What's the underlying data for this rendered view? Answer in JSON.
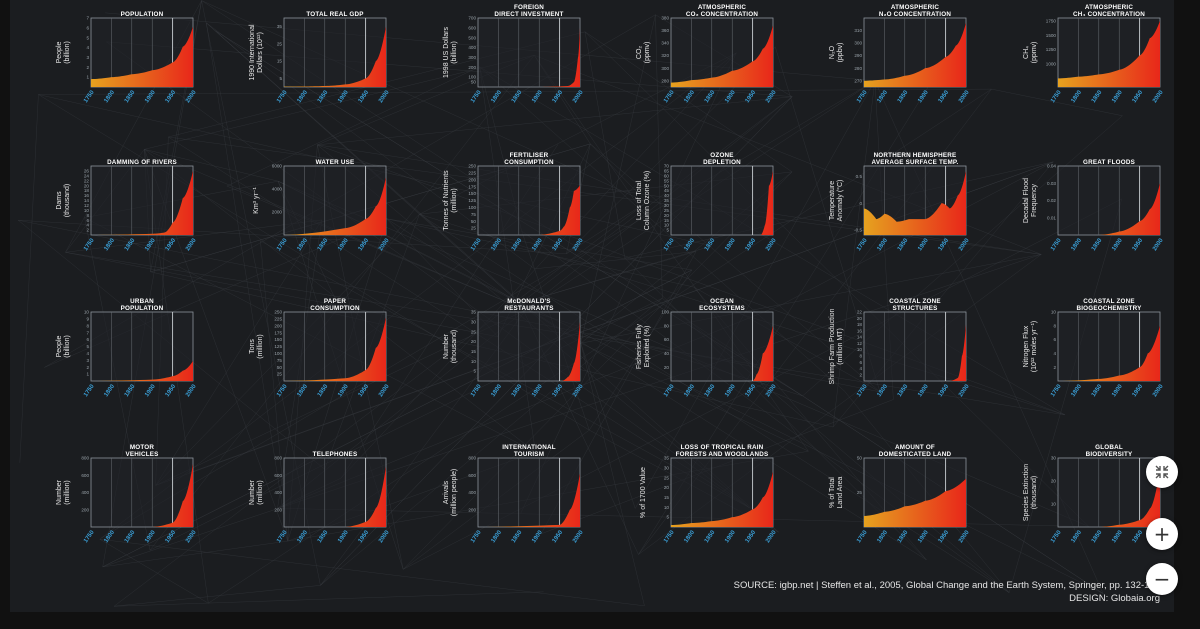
{
  "footer": {
    "source": "SOURCE: igbp.net | Steffen et al., 2005, Global Change and the Earth System, Springer, pp. 132-133",
    "design": "DESIGN: Globaia.org"
  },
  "controls": {
    "exit_fullscreen_icon": "compress-arrows-icon",
    "zoom_in_label": "+",
    "zoom_out_label": "−"
  },
  "colors": {
    "background": "#1b1d20",
    "fill_low": "#e6a21f",
    "fill_high": "#e8271a",
    "tick_color": "#3aa0d8"
  },
  "chart_data": [
    {
      "type": "area",
      "title": [
        "POPULATION"
      ],
      "ylabel": [
        "People",
        "(billion)"
      ],
      "yticks": [
        "1",
        "2",
        "3",
        "4",
        "5",
        "6",
        "7"
      ],
      "ylim": [
        0,
        7
      ],
      "x": [
        1750,
        1800,
        1850,
        1900,
        1950,
        1975,
        2000
      ],
      "values": [
        0.8,
        1.0,
        1.3,
        1.7,
        2.5,
        4.1,
        6.1
      ]
    },
    {
      "type": "area",
      "title": [
        "TOTAL REAL GDP"
      ],
      "ylabel": [
        "1990 International",
        "Dollars (10¹²)"
      ],
      "yticks": [
        "5",
        "15",
        "25",
        "35"
      ],
      "ylim": [
        0,
        40
      ],
      "x": [
        1750,
        1800,
        1850,
        1900,
        1950,
        1975,
        2000
      ],
      "values": [
        0.2,
        0.3,
        0.6,
        1.5,
        5,
        15,
        35
      ]
    },
    {
      "type": "area",
      "title": [
        "FOREIGN",
        "DIRECT INVESTMENT"
      ],
      "ylabel": [
        "1998 US Dollars",
        "(billion)"
      ],
      "yticks": [
        "50",
        "100",
        "200",
        "300",
        "400",
        "500",
        "600",
        "700"
      ],
      "ylim": [
        0,
        700
      ],
      "x": [
        1750,
        1900,
        1970,
        1985,
        1995,
        2000
      ],
      "values": [
        0,
        0,
        10,
        50,
        300,
        600
      ]
    },
    {
      "type": "area",
      "title": [
        "ATMOSPHERIC",
        "CO₂ CONCENTRATION"
      ],
      "ylabel": [
        "CO₂",
        "(ppmv)"
      ],
      "yticks": [
        "280",
        "300",
        "320",
        "340",
        "360",
        "380"
      ],
      "ylim": [
        270,
        380
      ],
      "x": [
        1750,
        1800,
        1850,
        1900,
        1950,
        1975,
        2000
      ],
      "values": [
        277,
        281,
        285,
        296,
        311,
        331,
        368
      ]
    },
    {
      "type": "area",
      "title": [
        "ATMOSPHERIC",
        "N₂O CONCENTRATION"
      ],
      "ylabel": [
        "N₂O",
        "(ppbv)"
      ],
      "yticks": [
        "270",
        "280",
        "290",
        "300",
        "310"
      ],
      "ylim": [
        265,
        320
      ],
      "x": [
        1750,
        1800,
        1850,
        1900,
        1950,
        1975,
        2000
      ],
      "values": [
        270,
        271,
        274,
        280,
        289,
        298,
        316
      ]
    },
    {
      "type": "area",
      "title": [
        "ATMOSPHERIC",
        "CH₄ CONCENTRATION"
      ],
      "ylabel": [
        "CH₄",
        "(ppmv)"
      ],
      "yticks": [
        "1000",
        "1250",
        "1500",
        "1750"
      ],
      "ylim": [
        600,
        1800
      ],
      "x": [
        1750,
        1800,
        1850,
        1900,
        1950,
        1975,
        2000
      ],
      "values": [
        750,
        780,
        820,
        900,
        1150,
        1450,
        1750
      ]
    },
    {
      "type": "area",
      "title": [
        "DAMMING OF RIVERS"
      ],
      "ylabel": [
        "Dams",
        "(thousand)"
      ],
      "yticks": [
        "2",
        "4",
        "6",
        "8",
        "10",
        "12",
        "14",
        "16",
        "18",
        "20",
        "22",
        "24",
        "26"
      ],
      "ylim": [
        0,
        28
      ],
      "x": [
        1750,
        1900,
        1930,
        1950,
        1975,
        2000
      ],
      "values": [
        0,
        0.5,
        1,
        5,
        15,
        26
      ]
    },
    {
      "type": "area",
      "title": [
        "WATER USE"
      ],
      "ylabel": [
        "Km³ yr⁻¹"
      ],
      "yticks": [
        "2000",
        "4000",
        "6000"
      ],
      "ylim": [
        0,
        6000
      ],
      "x": [
        1750,
        1900,
        1950,
        1975,
        2000
      ],
      "values": [
        0,
        600,
        1400,
        2500,
        5000
      ]
    },
    {
      "type": "area",
      "title": [
        "FERTILISER",
        "CONSUMPTION"
      ],
      "ylabel": [
        "Tonnes of Nutrients",
        "(million)"
      ],
      "yticks": [
        "25",
        "50",
        "75",
        "100",
        "125",
        "150",
        "175",
        "200",
        "225",
        "250"
      ],
      "ylim": [
        0,
        250
      ],
      "x": [
        1750,
        1900,
        1950,
        1960,
        1975,
        1985,
        2000
      ],
      "values": [
        0,
        0,
        15,
        30,
        100,
        160,
        180
      ]
    },
    {
      "type": "area",
      "title": [
        "OZONE",
        "DEPLETION"
      ],
      "ylabel": [
        "Loss of Total",
        "Column Ozone (%)"
      ],
      "yticks": [
        "5",
        "10",
        "15",
        "20",
        "25",
        "30",
        "35",
        "40",
        "45",
        "50",
        "55",
        "60",
        "65",
        "70"
      ],
      "ylim": [
        0,
        70
      ],
      "x": [
        1750,
        1970,
        1980,
        1990,
        2000
      ],
      "values": [
        0,
        0,
        10,
        50,
        65
      ]
    },
    {
      "type": "area",
      "title": [
        "NORTHERN HEMISPHERE",
        "AVERAGE SURFACE TEMP."
      ],
      "ylabel": [
        "Temperature",
        "Anomaly (°C)"
      ],
      "yticks": [
        "0.5",
        "0",
        "-0.5"
      ],
      "ylim": [
        -0.6,
        0.7
      ],
      "x": [
        1750,
        1780,
        1800,
        1830,
        1860,
        1900,
        1940,
        1960,
        1980,
        2000
      ],
      "values": [
        -0.1,
        -0.3,
        -0.2,
        -0.35,
        -0.3,
        -0.3,
        0.0,
        -0.1,
        0.15,
        0.6
      ]
    },
    {
      "type": "area",
      "title": [
        "GREAT FLOODS"
      ],
      "ylabel": [
        "Decadal Flood",
        "Frequency"
      ],
      "yticks": [
        "0.01",
        "0.02",
        "0.03",
        "0.04"
      ],
      "ylim": [
        0,
        0.04
      ],
      "x": [
        1750,
        1850,
        1900,
        1950,
        1975,
        2000
      ],
      "values": [
        0,
        0,
        0.002,
        0.008,
        0.015,
        0.03
      ]
    },
    {
      "type": "area",
      "title": [
        "URBAN",
        "POPULATION"
      ],
      "ylabel": [
        "People",
        "(billion)"
      ],
      "yticks": [
        "1",
        "2",
        "3",
        "4",
        "5",
        "6",
        "7",
        "8",
        "9",
        "10"
      ],
      "ylim": [
        0,
        10
      ],
      "x": [
        1750,
        1900,
        1950,
        1975,
        2000
      ],
      "values": [
        0,
        0.2,
        0.7,
        1.5,
        2.9
      ]
    },
    {
      "type": "area",
      "title": [
        "PAPER",
        "CONSUMPTION"
      ],
      "ylabel": [
        "Tons",
        "(million)"
      ],
      "yticks": [
        "25",
        "50",
        "75",
        "100",
        "125",
        "150",
        "175",
        "200",
        "225",
        "250"
      ],
      "ylim": [
        0,
        250
      ],
      "x": [
        1750,
        1900,
        1950,
        1975,
        2000
      ],
      "values": [
        0,
        10,
        40,
        120,
        230
      ]
    },
    {
      "type": "area",
      "title": [
        "McDONALD'S",
        "RESTAURANTS"
      ],
      "ylabel": [
        "Number",
        "(thousand)"
      ],
      "yticks": [
        "5",
        "10",
        "15",
        "20",
        "25",
        "30",
        "35"
      ],
      "ylim": [
        0,
        35
      ],
      "x": [
        1750,
        1955,
        1970,
        1985,
        2000
      ],
      "values": [
        0,
        0,
        2,
        9,
        30
      ]
    },
    {
      "type": "area",
      "title": [
        "OCEAN",
        "ECOSYSTEMS"
      ],
      "ylabel": [
        "Fisheries Fully",
        "Exploited (%)"
      ],
      "yticks": [
        "20",
        "40",
        "60",
        "80",
        "100"
      ],
      "ylim": [
        0,
        100
      ],
      "x": [
        1750,
        1950,
        1960,
        1975,
        2000
      ],
      "values": [
        0,
        0,
        10,
        40,
        80
      ]
    },
    {
      "type": "area",
      "title": [
        "COASTAL ZONE",
        "STRUCTURES"
      ],
      "ylabel": [
        "Shrimp Farm Production",
        "(million MT)"
      ],
      "yticks": [
        "2",
        "4",
        "6",
        "8",
        "10",
        "12",
        "14",
        "16",
        "18",
        "20",
        "22"
      ],
      "ylim": [
        0,
        22
      ],
      "x": [
        1750,
        1960,
        1980,
        1990,
        2000
      ],
      "values": [
        0,
        0,
        1,
        8,
        18
      ]
    },
    {
      "type": "area",
      "title": [
        "COASTAL ZONE",
        "BIOGEOCHEMISTRY"
      ],
      "ylabel": [
        "Nitrogen Flux",
        "(10¹² moles yr⁻¹)"
      ],
      "yticks": [
        "2",
        "4",
        "6",
        "8",
        "10"
      ],
      "ylim": [
        0,
        10
      ],
      "x": [
        1750,
        1850,
        1900,
        1950,
        1970,
        2000
      ],
      "values": [
        0,
        0.3,
        0.8,
        2,
        4,
        8
      ]
    },
    {
      "type": "area",
      "title": [
        "MOTOR",
        "VEHICLES"
      ],
      "ylabel": [
        "Number",
        "(million)"
      ],
      "yticks": [
        "200",
        "400",
        "600",
        "800"
      ],
      "ylim": [
        0,
        800
      ],
      "x": [
        1750,
        1900,
        1950,
        1975,
        2000
      ],
      "values": [
        0,
        0,
        50,
        300,
        730
      ]
    },
    {
      "type": "area",
      "title": [
        "TELEPHONES"
      ],
      "ylabel": [
        "Number",
        "(million)"
      ],
      "yticks": [
        "200",
        "400",
        "600",
        "800"
      ],
      "ylim": [
        0,
        800
      ],
      "x": [
        1750,
        1900,
        1950,
        1975,
        2000
      ],
      "values": [
        0,
        0,
        60,
        220,
        700
      ]
    },
    {
      "type": "area",
      "title": [
        "INTERNATIONAL",
        "TOURISM"
      ],
      "ylabel": [
        "Arrivals",
        "(million people)"
      ],
      "yticks": [
        "200",
        "400",
        "600",
        "800"
      ],
      "ylim": [
        0,
        800
      ],
      "x": [
        1750,
        1950,
        1975,
        2000
      ],
      "values": [
        0,
        25,
        200,
        620
      ]
    },
    {
      "type": "area",
      "title": [
        "LOSS OF TROPICAL RAIN",
        "FORESTS AND WOODLANDS"
      ],
      "ylabel": [
        "% of 1700 Value"
      ],
      "yticks": [
        "5",
        "10",
        "15",
        "20",
        "25",
        "30",
        "35"
      ],
      "ylim": [
        0,
        35
      ],
      "x": [
        1750,
        1800,
        1850,
        1900,
        1950,
        1975,
        2000
      ],
      "values": [
        1,
        2,
        3,
        5,
        9,
        15,
        28
      ]
    },
    {
      "type": "area",
      "title": [
        "AMOUNT OF",
        "DOMESTICATED LAND"
      ],
      "ylabel": [
        "% of Total",
        "Land Area"
      ],
      "yticks": [
        "25",
        "50"
      ],
      "ylim": [
        0,
        50
      ],
      "x": [
        1750,
        1800,
        1850,
        1900,
        1950,
        2000
      ],
      "values": [
        8,
        11,
        15,
        19,
        26,
        35
      ]
    },
    {
      "type": "area",
      "title": [
        "GLOBAL",
        "BIODIVERSITY"
      ],
      "ylabel": [
        "Species Extinction",
        "(thousand)"
      ],
      "yticks": [
        "10",
        "20",
        "30"
      ],
      "ylim": [
        0,
        30
      ],
      "x": [
        1750,
        1850,
        1900,
        1950,
        1975,
        2000
      ],
      "values": [
        0,
        0,
        1,
        3,
        8,
        25
      ]
    }
  ],
  "xticks": [
    "1750",
    "1800",
    "1850",
    "1900",
    "1950",
    "2000"
  ]
}
